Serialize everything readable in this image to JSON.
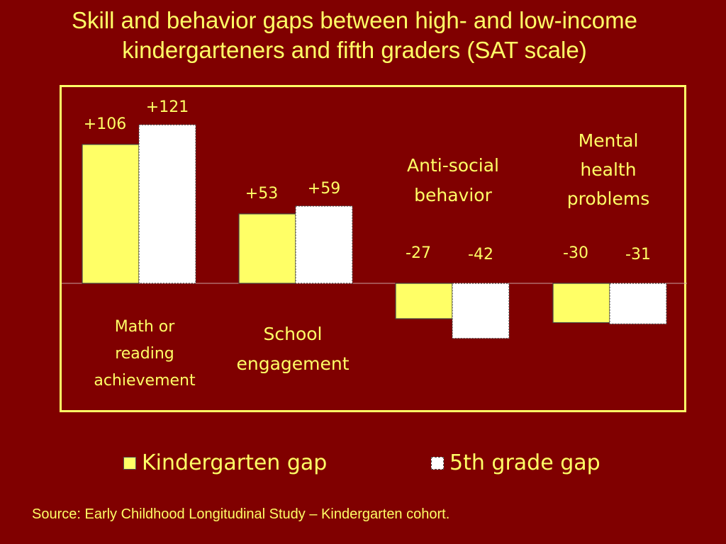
{
  "chart_data": {
    "type": "bar",
    "title": "Skill and behavior gaps between high- and low-income kindergarteners and fifth graders (SAT scale)",
    "categories": [
      "Math or reading achievement",
      "School engagement",
      "Anti-social behavior",
      "Mental health problems"
    ],
    "series": [
      {
        "name": "Kindergarten gap",
        "values": [
          106,
          53,
          -27,
          -30
        ],
        "labels": [
          "+106",
          "+53",
          "-27",
          "-30"
        ],
        "color": "#ffff66"
      },
      {
        "name": "5th grade gap",
        "values": [
          121,
          59,
          -42,
          -31
        ],
        "labels": [
          "+121",
          "+59",
          "-42",
          "-31"
        ],
        "color": "#ffffff"
      }
    ],
    "ylim": [
      -100,
      150
    ],
    "grid": false,
    "legend_position": "bottom",
    "source": "Source:  Early Childhood Longitudinal Study – Kindergarten cohort."
  },
  "colors": {
    "background": "#800000",
    "text": "#ffff66",
    "frame": "#ffff66",
    "axis": "#c8a0a0"
  }
}
